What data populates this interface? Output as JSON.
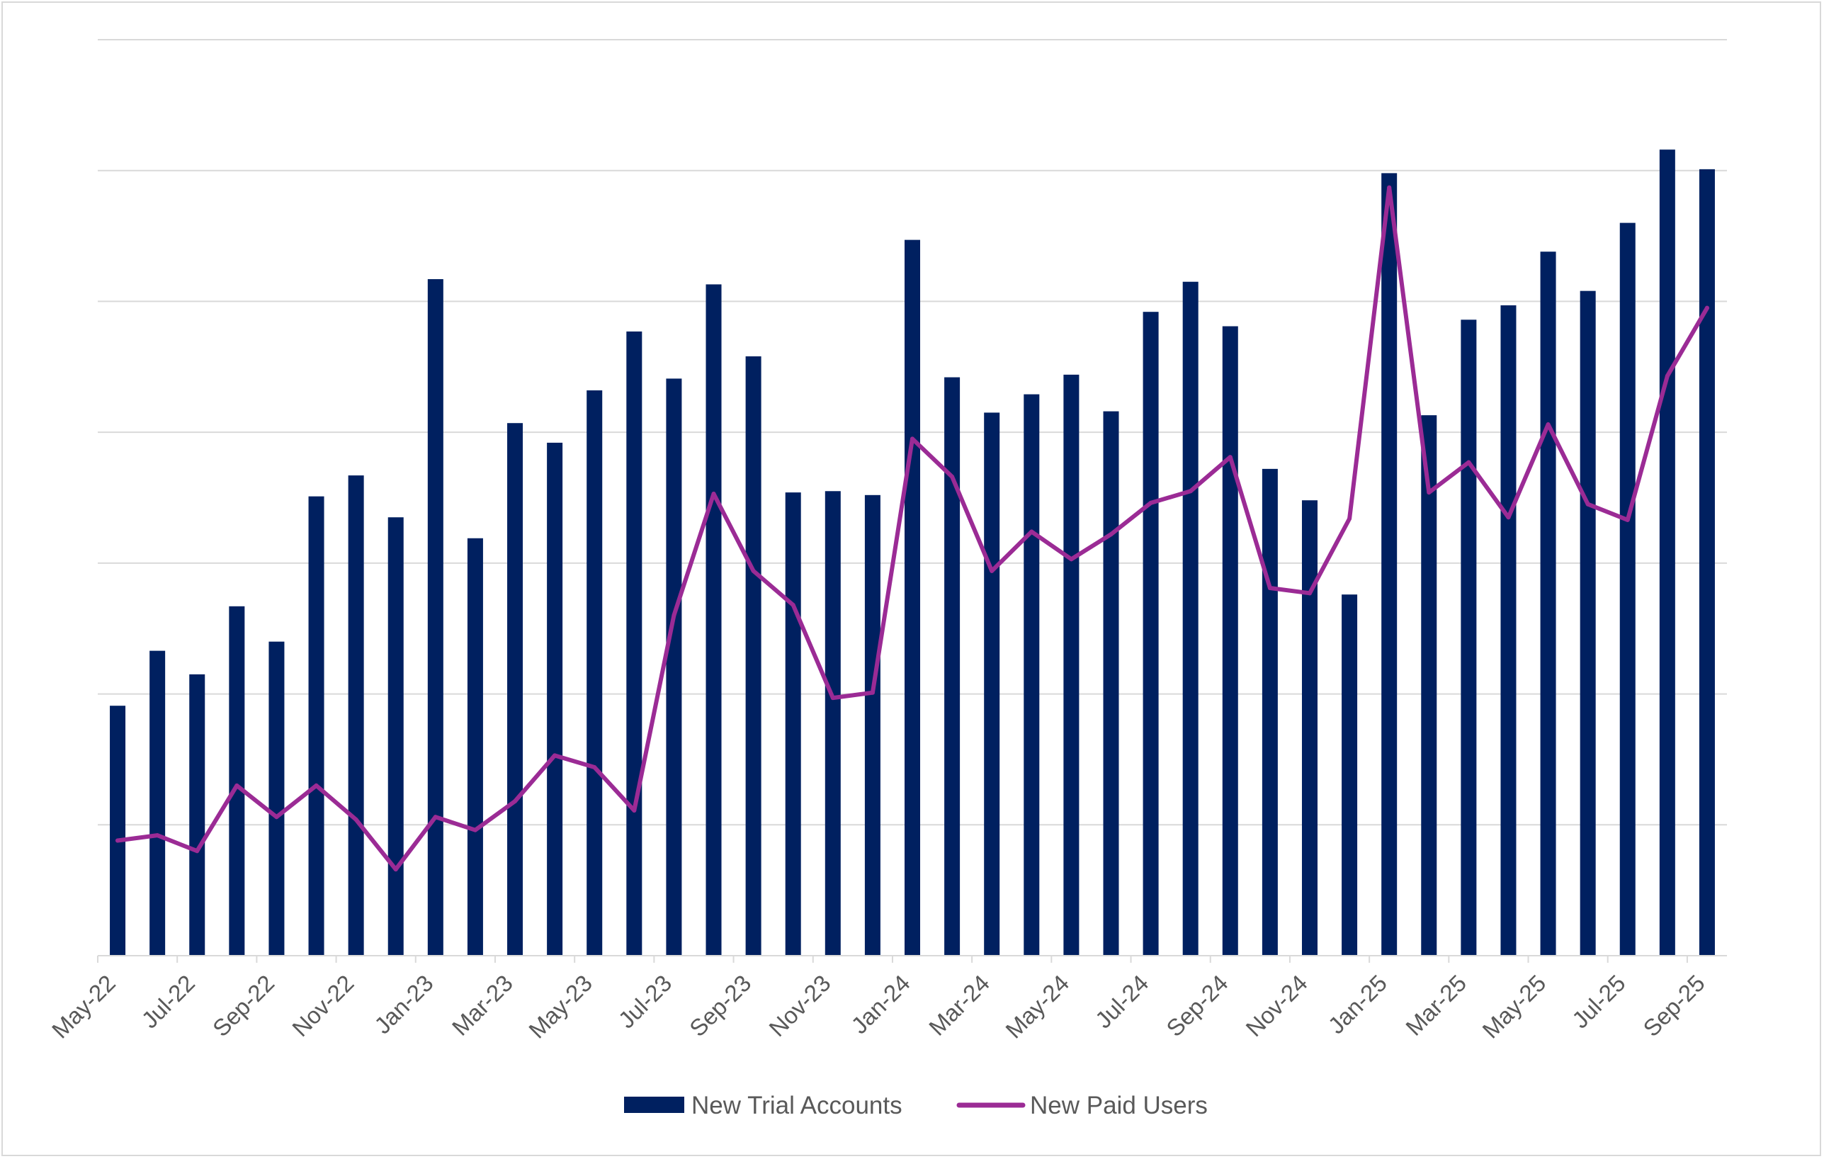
{
  "chart_data": {
    "type": "bar",
    "title": "",
    "xlabel": "",
    "ylabel": "",
    "y_tick_labels_shown": false,
    "grid": true,
    "legend_position": "bottom",
    "ylim": [
      0,
      7
    ],
    "categories": [
      "May-22",
      "Jun-22",
      "Jul-22",
      "Aug-22",
      "Sep-22",
      "Oct-22",
      "Nov-22",
      "Dec-22",
      "Jan-23",
      "Feb-23",
      "Mar-23",
      "Apr-23",
      "May-23",
      "Jun-23",
      "Jul-23",
      "Aug-23",
      "Sep-23",
      "Oct-23",
      "Nov-23",
      "Dec-23",
      "Jan-24",
      "Feb-24",
      "Mar-24",
      "Apr-24",
      "May-24",
      "Jun-24",
      "Jul-24",
      "Aug-24",
      "Sep-24",
      "Oct-24",
      "Nov-24",
      "Dec-24",
      "Jan-25",
      "Feb-25",
      "Mar-25",
      "Apr-25",
      "May-25",
      "Jun-25",
      "Jul-25",
      "Aug-25",
      "Sep-25"
    ],
    "tick_labels": [
      "May-22",
      "Jul-22",
      "Sep-22",
      "Nov-22",
      "Jan-23",
      "Mar-23",
      "May-23",
      "Jul-23",
      "Sep-23",
      "Nov-23",
      "Jan-24",
      "Mar-24",
      "May-24",
      "Jul-24",
      "Sep-24",
      "Nov-24",
      "Jan-25",
      "Mar-25",
      "May-25",
      "Jul-25",
      "Sep-25"
    ],
    "series": [
      {
        "name": "New Trial Accounts",
        "type": "bar",
        "color": "#002060",
        "values": [
          1.91,
          2.33,
          2.15,
          2.67,
          2.4,
          3.51,
          3.67,
          3.35,
          5.17,
          3.19,
          4.07,
          3.92,
          4.32,
          4.77,
          4.41,
          5.13,
          4.58,
          3.54,
          3.55,
          3.52,
          5.47,
          4.42,
          4.15,
          4.29,
          4.44,
          4.16,
          4.92,
          5.15,
          4.81,
          3.72,
          3.48,
          2.76,
          5.98,
          4.13,
          4.86,
          4.97,
          5.38,
          5.08,
          5.6,
          6.16,
          6.01
        ]
      },
      {
        "name": "New Paid Users",
        "type": "line",
        "color": "#9B2B95",
        "values": [
          0.88,
          0.92,
          0.8,
          1.3,
          1.06,
          1.3,
          1.04,
          0.66,
          1.06,
          0.96,
          1.18,
          1.53,
          1.44,
          1.11,
          2.6,
          3.53,
          2.94,
          2.68,
          1.97,
          2.01,
          3.95,
          3.66,
          2.94,
          3.24,
          3.03,
          3.22,
          3.46,
          3.55,
          3.81,
          2.81,
          2.77,
          3.34,
          5.87,
          3.54,
          3.77,
          3.35,
          4.06,
          3.45,
          3.33,
          4.43,
          4.95
        ]
      }
    ]
  }
}
